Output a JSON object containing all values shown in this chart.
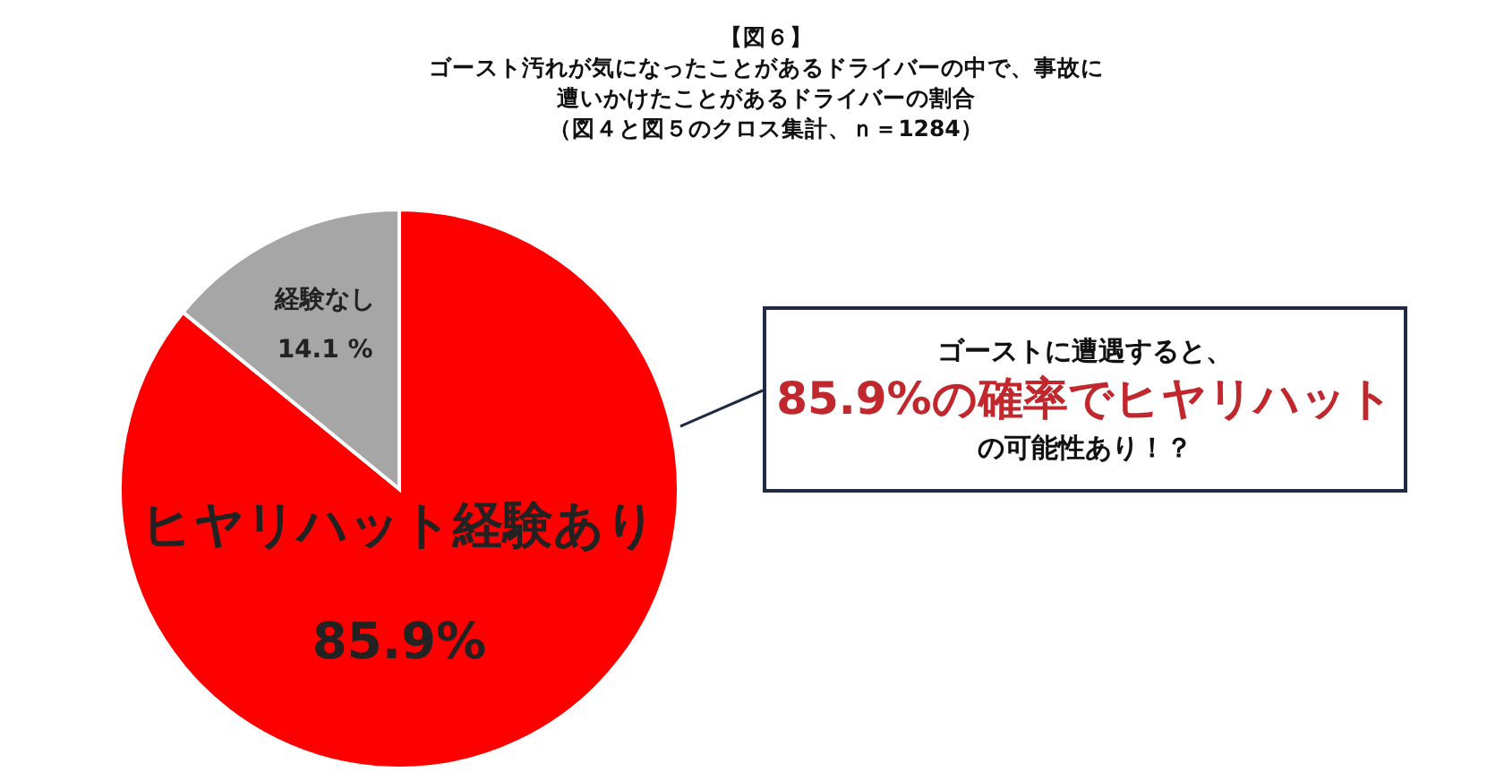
{
  "chart_data": {
    "type": "pie",
    "title": "【図６】",
    "subtitle": "ゴースト汚れが気になったことがあるドライバーの中で、事故に遭いかけたことがあるドライバーの割合",
    "categories": [
      "ヒヤリハット経験あり",
      "経験なし"
    ],
    "values": [
      85.9,
      14.1
    ],
    "colors": [
      "#ff0000",
      "#a6a6a6"
    ],
    "value_labels": [
      "85.9%",
      "14.1 %"
    ],
    "legend": false,
    "annotations": [
      "（図４と図５のクロス集計、ｎ＝1284）",
      "ゴーストに遭遇すると、",
      "85.9%の確率でヒヤリハット",
      "の可能性あり！？"
    ]
  }
}
